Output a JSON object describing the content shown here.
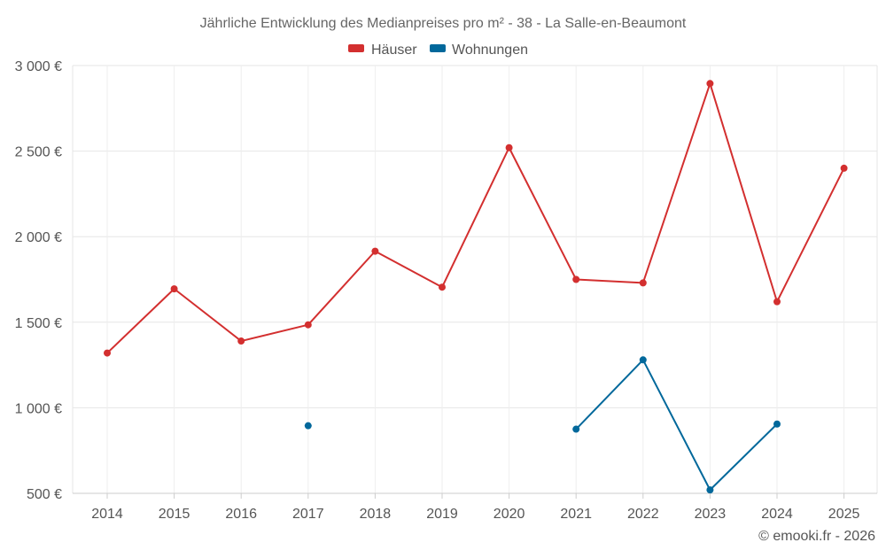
{
  "chart_data": {
    "type": "line",
    "title": "Jährliche Entwicklung des Medianpreises pro m² - 38 - La Salle-en-Beaumont",
    "categories": [
      "2014",
      "2015",
      "2016",
      "2017",
      "2018",
      "2019",
      "2020",
      "2021",
      "2022",
      "2023",
      "2024",
      "2025"
    ],
    "ylim": [
      500,
      3000
    ],
    "yticks": [
      500,
      1000,
      1500,
      2000,
      2500,
      3000
    ],
    "ytick_labels": [
      "500 €",
      "1 000 €",
      "1 500 €",
      "2 000 €",
      "2 500 €",
      "3 000 €"
    ],
    "grid": true,
    "legend_position": "top-center",
    "series": [
      {
        "name": "Häuser",
        "color": "#d32f2f",
        "values": [
          1320,
          1695,
          1390,
          1485,
          1915,
          1705,
          2520,
          1750,
          1730,
          2895,
          1620,
          2400
        ]
      },
      {
        "name": "Wohnungen",
        "color": "#01689b",
        "values": [
          null,
          null,
          null,
          895,
          null,
          null,
          null,
          875,
          1280,
          520,
          905,
          null
        ]
      }
    ]
  },
  "credit": "© emooki.fr - 2026"
}
